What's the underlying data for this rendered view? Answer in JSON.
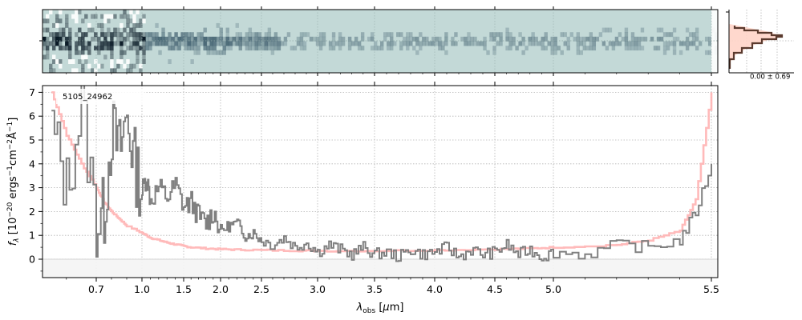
{
  "figure": {
    "object_id": "5105_24962",
    "stat_label": "0.00 ± 0.69"
  },
  "colors": {
    "flux_line": "#808080",
    "error_line": "#ffb3b3",
    "error_fill": "#ffd4c8",
    "hist_line": "#5a3a2e",
    "twod_background": "#c3d9d7",
    "twod_dark": "#0a1a26"
  },
  "chart_data": {
    "type": "line",
    "title": "",
    "xlabel": "λobs [μm]",
    "ylabel": "fλ [10^-20 ergs^-1cm^-2Å^-1]",
    "x_scale": "nonlinear (roughly linear in wavelength, stretched at the blue end)",
    "xlim": [
      0.52,
      5.53
    ],
    "ylim": [
      -0.7,
      7.2
    ],
    "x_ticks": [
      0.7,
      1.0,
      1.5,
      2.0,
      2.5,
      3.0,
      3.5,
      4.0,
      4.5,
      5.0,
      5.5
    ],
    "x_tick_labels": [
      "0.7",
      "1.0",
      "1.5",
      "2.0",
      "2.5",
      "3.0",
      "3.5",
      "4.0",
      "4.5",
      "5.0",
      "5.5"
    ],
    "y_ticks": [
      0,
      1,
      2,
      3,
      4,
      5,
      6,
      7
    ],
    "y_tick_labels": [
      "0",
      "1",
      "2",
      "3",
      "4",
      "5",
      "6",
      "7"
    ],
    "grid": true,
    "series": [
      {
        "role": "flux",
        "x": [
          0.55,
          0.6,
          0.65,
          0.7,
          0.75,
          0.8,
          0.85,
          0.9,
          0.95,
          1.0,
          1.05,
          1.1,
          1.2,
          1.3,
          1.4,
          1.5,
          1.6,
          1.7,
          1.8,
          1.9,
          2.0,
          2.1,
          2.2,
          2.3,
          2.4,
          2.5,
          2.6,
          2.7,
          2.8,
          2.9,
          3.0,
          3.1,
          3.2,
          3.3,
          3.4,
          3.5,
          3.6,
          3.7,
          3.8,
          3.9,
          4.0,
          4.1,
          4.2,
          4.3,
          4.4,
          4.5,
          4.6,
          4.7,
          4.8,
          4.9,
          5.0,
          5.1,
          5.2,
          5.3,
          5.4,
          5.45,
          5.5
        ],
        "y": [
          5.5,
          3.0,
          6.5,
          1.5,
          2.0,
          5.5,
          4.5,
          6.0,
          4.0,
          2.8,
          3.5,
          2.5,
          3.0,
          2.6,
          3.1,
          2.2,
          2.4,
          1.8,
          1.5,
          2.0,
          1.2,
          1.4,
          1.5,
          1.0,
          1.1,
          0.8,
          0.6,
          0.9,
          0.5,
          0.7,
          0.3,
          0.6,
          0.4,
          0.2,
          0.5,
          0.2,
          0.3,
          0.1,
          0.4,
          0.2,
          0.3,
          0.5,
          0.1,
          0.4,
          0.2,
          0.3,
          0.6,
          0.2,
          0.4,
          0.1,
          0.3,
          0.2,
          0.6,
          0.5,
          0.8,
          2.0,
          4.0
        ]
      },
      {
        "role": "uncertainty",
        "x": [
          0.55,
          0.6,
          0.65,
          0.7,
          0.75,
          0.8,
          0.85,
          0.9,
          1.0,
          1.1,
          1.2,
          1.3,
          1.4,
          1.5,
          1.6,
          1.8,
          2.0,
          2.2,
          2.5,
          2.8,
          3.0,
          3.5,
          4.0,
          4.5,
          4.8,
          5.0,
          5.2,
          5.3,
          5.4,
          5.45,
          5.5
        ],
        "y": [
          7.0,
          5.2,
          4.0,
          3.0,
          2.4,
          2.0,
          1.7,
          1.4,
          1.1,
          0.9,
          0.8,
          0.7,
          0.62,
          0.55,
          0.5,
          0.45,
          0.42,
          0.4,
          0.38,
          0.36,
          0.35,
          0.35,
          0.38,
          0.42,
          0.45,
          0.5,
          0.6,
          0.8,
          1.2,
          2.5,
          7.0
        ]
      }
    ]
  }
}
